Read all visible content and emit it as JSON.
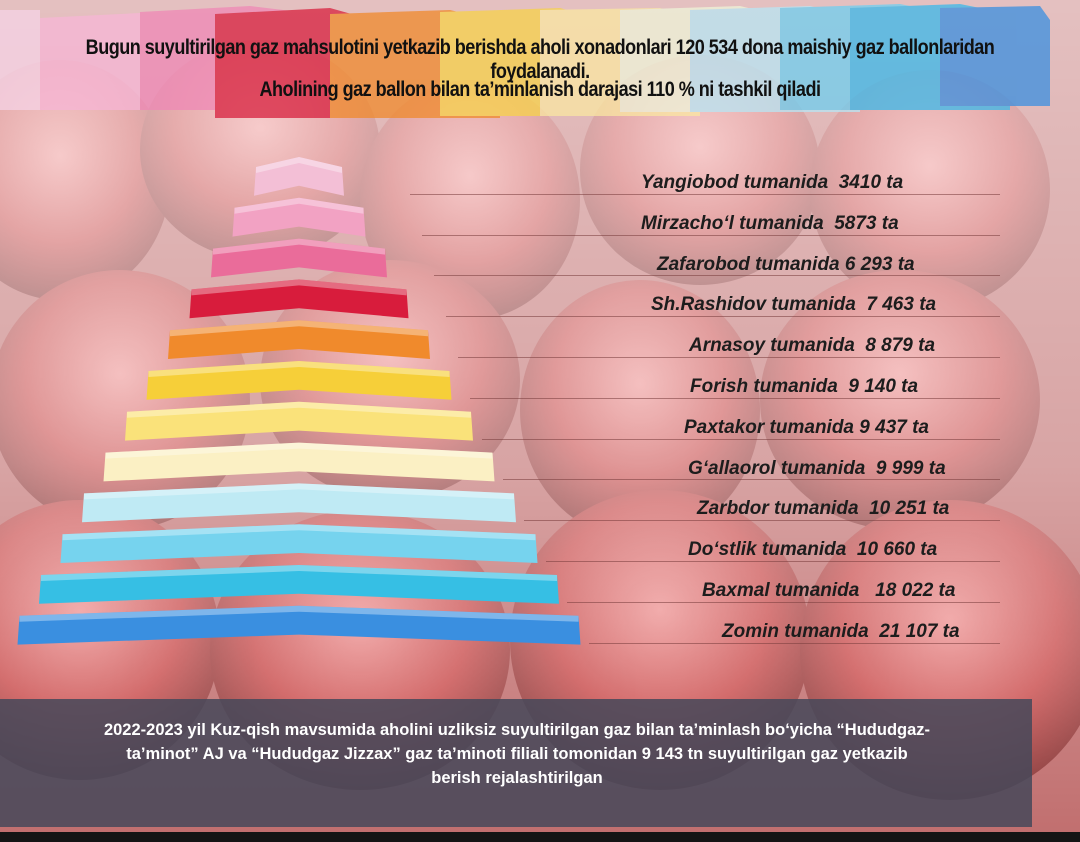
{
  "header": {
    "line1": "Bugun suyultirilgan gaz mahsulotini yetkazib berishda aholi xonadonlari 120 534 dona maishiy gaz ballonlaridan foydalanadi.",
    "line2": "Aholining gaz ballon bilan ta’minlanish darajasi 110 % ni tashkil qiladi"
  },
  "districts": [
    {
      "label": "Yangiobod tumanida  3410 ta",
      "color": "#f3bfd6"
    },
    {
      "label": "Mirzacho‘l tumanida  5873 ta",
      "color": "#f2a2c3"
    },
    {
      "label": "Zafarobod tumanida 6 293 ta",
      "color": "#ea6c9a"
    },
    {
      "label": "Sh.Rashidov tumanida  7 463 ta",
      "color": "#d81c3c"
    },
    {
      "label": "Arnasoy tumanida  8 879 ta",
      "color": "#f08a2c"
    },
    {
      "label": "Forish tumanida  9 140 ta",
      "color": "#f6cf39"
    },
    {
      "label": "Paxtakor tumanida 9 437 ta",
      "color": "#fae27a"
    },
    {
      "label": "G‘allaorol tumanida  9 999 ta",
      "color": "#fbf0c4"
    },
    {
      "label": "Zarbdor tumanida  10 251 ta",
      "color": "#bfeaf4"
    },
    {
      "label": "Do‘stlik tumanida  10 660 ta",
      "color": "#76d3ee"
    },
    {
      "label": "Baxmal tumanida   18 022 ta",
      "color": "#36bfe4"
    },
    {
      "label": "Zomin tumanida  21 107 ta",
      "color": "#3a8fe0"
    }
  ],
  "footer": {
    "line1": "2022-2023 yil Kuz-qish mavsumida aholini uzliksiz suyultirilgan gaz bilan ta’minlash bo‘yicha “Hududgaz-",
    "line2": "ta’minot” AJ va “Hududgaz Jizzax” gaz ta’minoti filiali tomonidan 9 143 tn suyultirilgan gaz yetkazib",
    "line3": "berish rejalashtirilgan"
  }
}
